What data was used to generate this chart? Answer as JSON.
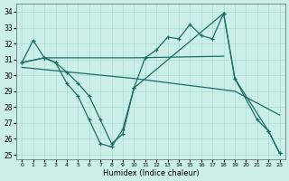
{
  "xlabel": "Humidex (Indice chaleur)",
  "xlim": [
    -0.5,
    23.5
  ],
  "ylim": [
    24.7,
    34.5
  ],
  "yticks": [
    25,
    26,
    27,
    28,
    29,
    30,
    31,
    32,
    33,
    34
  ],
  "xticks": [
    0,
    1,
    2,
    3,
    4,
    5,
    6,
    7,
    8,
    9,
    10,
    11,
    12,
    13,
    14,
    15,
    16,
    17,
    18,
    19,
    20,
    21,
    22,
    23
  ],
  "bg_color": "#cceee8",
  "grid_color": "#aaddcc",
  "line_color": "#1a6e68",
  "line1_x": [
    0,
    1,
    2,
    3,
    4,
    5,
    6,
    7,
    8,
    9,
    10,
    11,
    12,
    13,
    14,
    15,
    16,
    17,
    18,
    19,
    21,
    22,
    23
  ],
  "line1_y": [
    30.8,
    32.2,
    31.1,
    30.8,
    29.5,
    28.7,
    27.2,
    25.7,
    25.5,
    26.6,
    29.2,
    31.1,
    31.6,
    32.4,
    32.3,
    33.2,
    32.5,
    32.3,
    33.9,
    29.8,
    27.2,
    26.5,
    25.1
  ],
  "line2_x": [
    0,
    2,
    10,
    18
  ],
  "line2_y": [
    30.8,
    31.1,
    31.1,
    31.2
  ],
  "line3_x": [
    0,
    10,
    19,
    23
  ],
  "line3_y": [
    30.5,
    29.8,
    29.0,
    27.5
  ],
  "line4_x": [
    0,
    2,
    3,
    4,
    5,
    6,
    7,
    8,
    9,
    10,
    18,
    19,
    22,
    23
  ],
  "line4_y": [
    30.8,
    31.1,
    30.8,
    30.2,
    29.5,
    28.7,
    27.2,
    25.7,
    26.3,
    29.2,
    33.9,
    29.8,
    26.5,
    25.1
  ]
}
